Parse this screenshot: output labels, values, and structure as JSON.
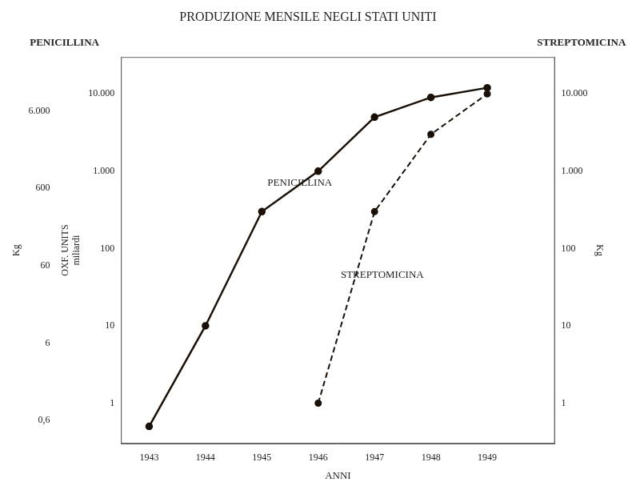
{
  "chart_data": {
    "type": "line",
    "title": "PRODUZIONE MENSILE NEGLI STATI UNITI",
    "xlabel": "ANNI",
    "ylabel": "OXF. UNITS\nmiliardi",
    "y2label": "Kg",
    "y3label": "Kg",
    "left_header": "PENICILLINA",
    "right_header": "STREPTOMICINA",
    "log": "y",
    "grid": false,
    "xlim": [
      1942.5,
      1950.2
    ],
    "xticks": [
      1943,
      1944,
      1945,
      1946,
      1947,
      1948,
      1949
    ],
    "ylim": [
      0.3,
      30000
    ],
    "yticks": [
      1,
      10,
      100,
      {
        "value": 1000,
        "label": "1.000"
      },
      {
        "value": 10000,
        "label": "10.000"
      }
    ],
    "y2lim": [
      0.3,
      30000
    ],
    "y2ticks": [
      1,
      10,
      100,
      {
        "value": 1000,
        "label": "1.000"
      },
      {
        "value": 10000,
        "label": "10.000"
      }
    ],
    "y3lim": [
      0.3,
      30000
    ],
    "y3ticks": [
      {
        "value": 0.6,
        "label": "0,6"
      },
      6,
      60,
      600,
      {
        "value": 6000,
        "label": "6.000"
      }
    ],
    "series": [
      {
        "x": [
          1943,
          1944,
          1945,
          1946,
          1947,
          1948,
          1949
        ],
        "values": [
          0.5,
          10,
          300,
          1000,
          5000,
          9000,
          12000
        ],
        "color": "#1a1008",
        "line_style": "solid",
        "marker": "circle"
      },
      {
        "x": [
          1946,
          1947,
          1948,
          1949
        ],
        "values": [
          1,
          300,
          3000,
          10000
        ],
        "color": "#1a1008",
        "line_style": "dashed",
        "marker": "circle"
      }
    ],
    "annotations": [
      {
        "text": "PENICILLINA",
        "x": 1945.1,
        "y": 700
      },
      {
        "text": "STREPTOMICINA",
        "x": 1946.4,
        "y": 45
      }
    ]
  }
}
